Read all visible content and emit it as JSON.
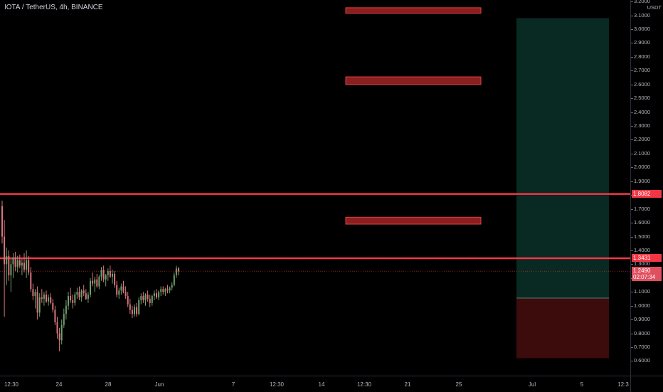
{
  "chart": {
    "title": "IOTA / TetherUS, 4h, BINANCE",
    "quote_unit": "USDT",
    "colors": {
      "background": "#000000",
      "up_candle": "#6fa06a",
      "down_candle": "#d9757d",
      "level_line": "#f23645",
      "zone_fill": "#8b1e1e",
      "profit_fill": "#104a40",
      "loss_fill": "#6e1414"
    },
    "price_scale": {
      "labels": [
        "3.2000",
        "3.1000",
        "3.0000",
        "2.9000",
        "2.8000",
        "2.7000",
        "2.6000",
        "2.5000",
        "2.4000",
        "2.3000",
        "2.2000",
        "2.1000",
        "2.0000",
        "1.9000",
        "1.8000",
        "1.7000",
        "1.6000",
        "1.5000",
        "1.4000",
        "1.3000",
        "1.2000",
        "1.1000",
        "1.0000",
        "0.9000",
        "0.8000",
        "0.7000",
        "0.6000"
      ]
    },
    "time_scale": {
      "labels": [
        "12:30",
        "24",
        "28",
        "Jun",
        "7",
        "12:30",
        "14",
        "12:30",
        "21",
        "25",
        "Jul",
        "5",
        "12:3"
      ]
    },
    "horizontal_levels": [
      {
        "price": 1.8082,
        "label": "1.8082"
      },
      {
        "price": 1.3431,
        "label": "1.3431"
      }
    ],
    "last_price": {
      "value": 1.249,
      "label": "1.2490",
      "countdown": "02:07:34"
    },
    "resistance_zones": [
      {
        "top": 3.155,
        "bottom": 3.115
      },
      {
        "top": 2.655,
        "bottom": 2.6
      },
      {
        "top": 1.64,
        "bottom": 1.59
      }
    ],
    "long_position": {
      "target": 3.08,
      "entry": 1.055,
      "stop": 0.62
    },
    "candles": [
      [
        1.72,
        1.76,
        1.45,
        1.5
      ],
      [
        1.5,
        1.62,
        0.92,
        1.3
      ],
      [
        1.3,
        1.42,
        1.15,
        1.36
      ],
      [
        1.36,
        1.4,
        1.18,
        1.22
      ],
      [
        1.22,
        1.34,
        1.1,
        1.3
      ],
      [
        1.3,
        1.38,
        1.2,
        1.35
      ],
      [
        1.35,
        1.39,
        1.25,
        1.28
      ],
      [
        1.28,
        1.36,
        1.24,
        1.33
      ],
      [
        1.33,
        1.37,
        1.27,
        1.29
      ],
      [
        1.29,
        1.34,
        1.22,
        1.31
      ],
      [
        1.31,
        1.38,
        1.24,
        1.26
      ],
      [
        1.26,
        1.4,
        1.2,
        1.33
      ],
      [
        1.33,
        1.36,
        1.22,
        1.24
      ],
      [
        1.24,
        1.28,
        1.1,
        1.12
      ],
      [
        1.12,
        1.16,
        1.04,
        1.07
      ],
      [
        1.07,
        1.12,
        0.98,
        1.1
      ],
      [
        1.1,
        1.14,
        0.9,
        0.95
      ],
      [
        0.95,
        1.09,
        0.92,
        1.06
      ],
      [
        1.06,
        1.12,
        1.02,
        1.05
      ],
      [
        1.05,
        1.1,
        1.0,
        1.08
      ],
      [
        1.08,
        1.11,
        1.02,
        1.03
      ],
      [
        1.03,
        1.08,
        1.0,
        1.06
      ],
      [
        1.06,
        1.09,
        1.01,
        1.02
      ],
      [
        1.02,
        1.05,
        0.95,
        0.97
      ],
      [
        0.97,
        1.0,
        0.86,
        0.88
      ],
      [
        0.88,
        0.92,
        0.76,
        0.8
      ],
      [
        0.8,
        0.84,
        0.67,
        0.75
      ],
      [
        0.75,
        0.9,
        0.72,
        0.86
      ],
      [
        0.86,
        0.98,
        0.84,
        0.94
      ],
      [
        0.94,
        1.04,
        0.9,
        1.0
      ],
      [
        1.0,
        1.1,
        0.97,
        1.07
      ],
      [
        1.07,
        1.13,
        1.02,
        1.04
      ],
      [
        1.04,
        1.08,
        0.98,
        1.02
      ],
      [
        1.02,
        1.1,
        1.0,
        1.08
      ],
      [
        1.08,
        1.13,
        1.05,
        1.1
      ],
      [
        1.1,
        1.14,
        1.04,
        1.06
      ],
      [
        1.06,
        1.12,
        1.03,
        1.11
      ],
      [
        1.11,
        1.15,
        1.07,
        1.09
      ],
      [
        1.09,
        1.12,
        1.04,
        1.05
      ],
      [
        1.05,
        1.1,
        1.02,
        1.08
      ],
      [
        1.08,
        1.2,
        1.06,
        1.18
      ],
      [
        1.18,
        1.24,
        1.14,
        1.16
      ],
      [
        1.16,
        1.21,
        1.1,
        1.19
      ],
      [
        1.19,
        1.23,
        1.13,
        1.14
      ],
      [
        1.14,
        1.22,
        1.12,
        1.21
      ],
      [
        1.21,
        1.28,
        1.18,
        1.26
      ],
      [
        1.26,
        1.29,
        1.17,
        1.19
      ],
      [
        1.19,
        1.23,
        1.14,
        1.22
      ],
      [
        1.22,
        1.27,
        1.18,
        1.25
      ],
      [
        1.25,
        1.29,
        1.2,
        1.21
      ],
      [
        1.21,
        1.26,
        1.16,
        1.23
      ],
      [
        1.23,
        1.25,
        1.13,
        1.15
      ],
      [
        1.15,
        1.18,
        1.06,
        1.08
      ],
      [
        1.08,
        1.13,
        1.05,
        1.11
      ],
      [
        1.11,
        1.16,
        1.08,
        1.14
      ],
      [
        1.14,
        1.18,
        1.09,
        1.1
      ],
      [
        1.1,
        1.14,
        1.05,
        1.07
      ],
      [
        1.07,
        1.1,
        0.99,
        1.01
      ],
      [
        1.01,
        1.05,
        0.94,
        0.97
      ],
      [
        0.97,
        1.0,
        0.91,
        0.94
      ],
      [
        0.94,
        1.01,
        0.92,
        0.99
      ],
      [
        0.99,
        1.02,
        0.92,
        0.94
      ],
      [
        0.94,
        1.06,
        0.93,
        1.04
      ],
      [
        1.04,
        1.09,
        1.01,
        1.07
      ],
      [
        1.07,
        1.1,
        1.02,
        1.04
      ],
      [
        1.04,
        1.09,
        1.0,
        1.08
      ],
      [
        1.08,
        1.11,
        1.03,
        1.05
      ],
      [
        1.05,
        1.08,
        0.99,
        1.02
      ],
      [
        1.02,
        1.08,
        1.0,
        1.07
      ],
      [
        1.07,
        1.11,
        1.04,
        1.09
      ],
      [
        1.09,
        1.12,
        1.05,
        1.06
      ],
      [
        1.06,
        1.11,
        1.04,
        1.1
      ],
      [
        1.1,
        1.14,
        1.07,
        1.12
      ],
      [
        1.12,
        1.14,
        1.08,
        1.1
      ],
      [
        1.1,
        1.13,
        1.07,
        1.12
      ],
      [
        1.12,
        1.15,
        1.09,
        1.11
      ],
      [
        1.11,
        1.14,
        1.09,
        1.13
      ],
      [
        1.13,
        1.17,
        1.11,
        1.15
      ],
      [
        1.15,
        1.24,
        1.14,
        1.22
      ],
      [
        1.22,
        1.29,
        1.2,
        1.27
      ],
      [
        1.27,
        1.28,
        1.22,
        1.249
      ]
    ]
  }
}
